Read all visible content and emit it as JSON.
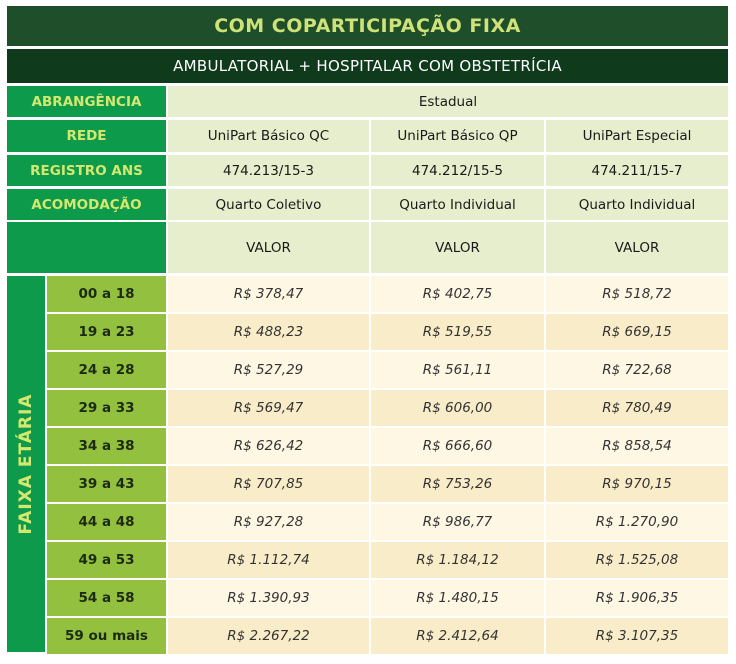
{
  "title": "COM COPARTICIPAÇÃO FIXA",
  "subtitle": "AMBULATORIAL + HOSPITALAR COM OBSTETRÍCIA",
  "header_rows": {
    "abrangencia": {
      "label": "ABRANGÊNCIA",
      "value": "Estadual"
    },
    "rede": {
      "label": "REDE",
      "values": [
        "UniPart Básico QC",
        "UniPart Básico QP",
        "UniPart Especial"
      ]
    },
    "registro": {
      "label": "REGISTRO ANS",
      "values": [
        "474.213/15-3",
        "474.212/15-5",
        "474.211/15-7"
      ]
    },
    "acomodacao": {
      "label": "ACOMODAÇÃO",
      "values": [
        "Quarto Coletivo",
        "Quarto Individual",
        "Quarto Individual"
      ]
    },
    "valor": {
      "values": [
        "VALOR",
        "VALOR",
        "VALOR"
      ]
    }
  },
  "faixa_label": "FAIXA ETÁRIA",
  "age_rows": [
    {
      "age": "00 a 18",
      "prices": [
        "R$ 378,47",
        "R$ 402,75",
        "R$ 518,72"
      ]
    },
    {
      "age": "19 a 23",
      "prices": [
        "R$ 488,23",
        "R$ 519,55",
        "R$ 669,15"
      ]
    },
    {
      "age": "24 a 28",
      "prices": [
        "R$ 527,29",
        "R$ 561,11",
        "R$ 722,68"
      ]
    },
    {
      "age": "29 a 33",
      "prices": [
        "R$ 569,47",
        "R$ 606,00",
        "R$ 780,49"
      ]
    },
    {
      "age": "34 a 38",
      "prices": [
        "R$ 626,42",
        "R$ 666,60",
        "R$ 858,54"
      ]
    },
    {
      "age": "39 a 43",
      "prices": [
        "R$ 707,85",
        "R$ 753,26",
        "R$ 970,15"
      ]
    },
    {
      "age": "44 a 48",
      "prices": [
        "R$ 927,28",
        "R$ 986,77",
        "R$ 1.270,90"
      ]
    },
    {
      "age": "49 a 53",
      "prices": [
        "R$ 1.112,74",
        "R$ 1.184,12",
        "R$ 1.525,08"
      ]
    },
    {
      "age": "54 a 58",
      "prices": [
        "R$ 1.390,93",
        "R$ 1.480,15",
        "R$ 1.906,35"
      ]
    },
    {
      "age": "59 ou mais",
      "prices": [
        "R$ 2.267,22",
        "R$ 2.412,64",
        "R$ 3.107,35"
      ]
    }
  ]
}
